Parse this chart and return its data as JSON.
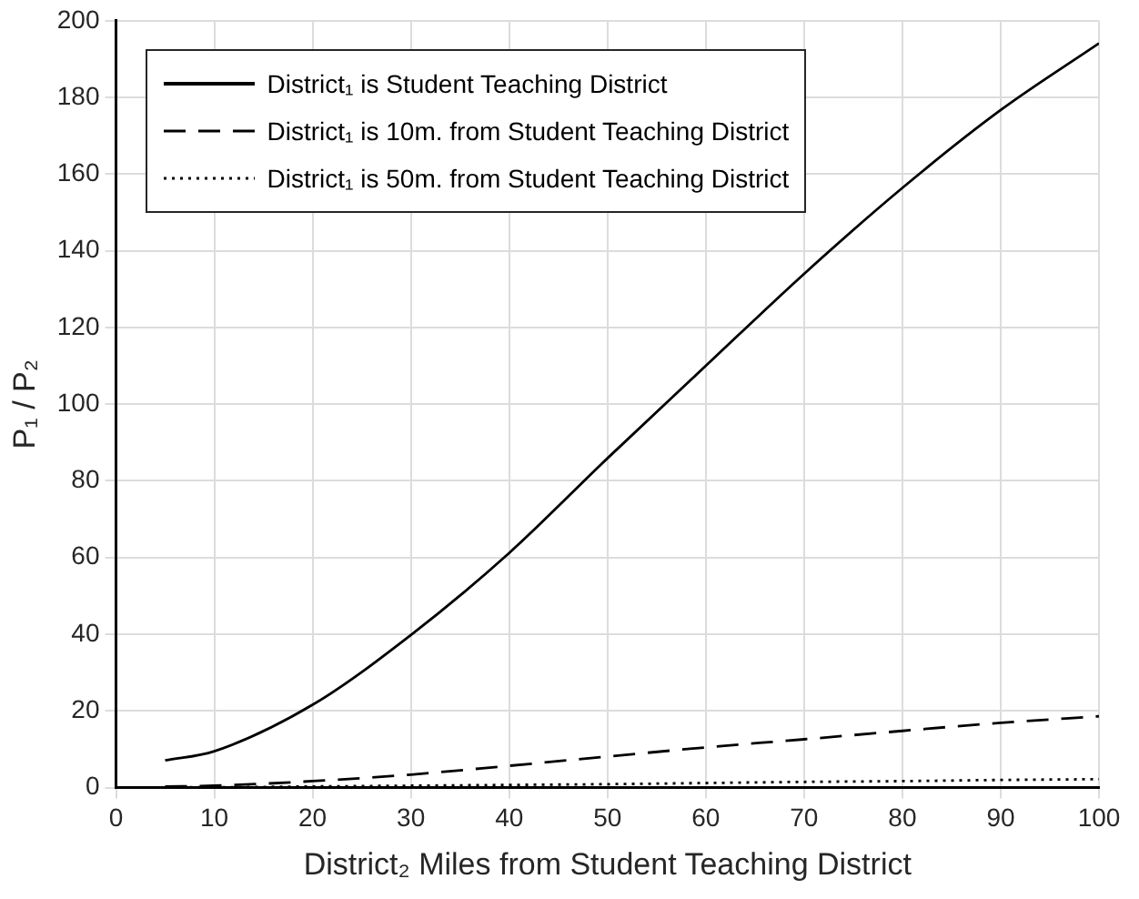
{
  "chart_data": {
    "type": "line",
    "xlabel": "District₂ Miles from Student Teaching District",
    "ylabel": "P₁ / P₂",
    "x": [
      5,
      10,
      20,
      30,
      40,
      50,
      60,
      70,
      80,
      90,
      100
    ],
    "series": [
      {
        "name": "District₁  is Student Teaching District",
        "color": "#000000",
        "line_style": "solid",
        "values": [
          7.1,
          9.5,
          21.6,
          39.8,
          61.2,
          85.9,
          110,
          134,
          156.4,
          176.7,
          194.1
        ]
      },
      {
        "name": "District₁  is 10m. from Student Teaching District",
        "color": "#000000",
        "line_style": "dashed",
        "values": [
          0.3,
          0.5,
          1.7,
          3.4,
          5.7,
          8.1,
          10.5,
          12.6,
          14.8,
          16.9,
          18.6
        ]
      },
      {
        "name": "District₁  is 50m. from Student Teaching District",
        "color": "#000000",
        "line_style": "dotted",
        "values": [
          0.1,
          0.1,
          0.3,
          0.5,
          0.7,
          0.9,
          1.2,
          1.5,
          1.7,
          2,
          2.2
        ]
      }
    ],
    "xlim": [
      0,
      100
    ],
    "xticks": [
      0,
      10,
      20,
      30,
      40,
      50,
      60,
      70,
      80,
      90,
      100
    ],
    "ylim": [
      0,
      200
    ],
    "yticks": [
      0,
      20,
      40,
      60,
      80,
      100,
      120,
      140,
      160,
      180,
      200
    ],
    "grid": true,
    "legend": "top left",
    "marker": "none"
  }
}
